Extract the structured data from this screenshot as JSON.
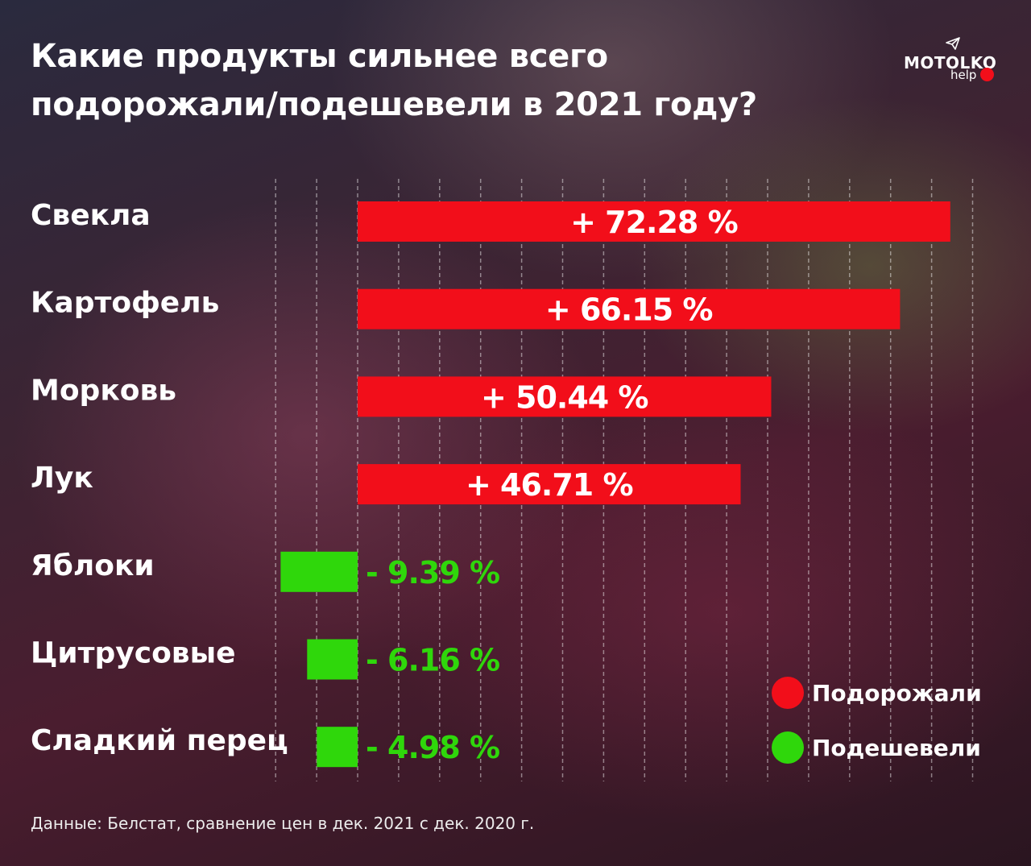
{
  "header": {
    "title_line1": "Какие продукты сильнее всего",
    "title_line2": "подорожали/подешевели в 2021 году?"
  },
  "logo": {
    "name": "MOTOLKO",
    "sub": "help"
  },
  "source": "Данные: Белстат, сравнение цен в дек. 2021 с дек. 2020 г.",
  "legend": {
    "up_label": "Подорожали",
    "down_label": "Подешевели"
  },
  "colors": {
    "up": "#f20e1a",
    "down": "#2fd70b",
    "label_up": "#ffffff",
    "label_down": "#2fd70b"
  },
  "chart_data": {
    "type": "bar",
    "orientation": "horizontal",
    "categories": [
      "Свекла",
      "Картофель",
      "Морковь",
      "Лук",
      "Яблоки",
      "Цитрусовые",
      "Сладкий перец"
    ],
    "values": [
      72.28,
      66.15,
      50.44,
      46.71,
      -9.39,
      -6.16,
      -4.98
    ],
    "value_labels": [
      "+ 72.28 %",
      "+ 66.15 %",
      "+ 50.44 %",
      "+ 46.71 %",
      "- 9.39 %",
      "- 6.16 %",
      "- 4.98 %"
    ],
    "xlim": [
      -10,
      75
    ],
    "grid": true,
    "legend_position": "bottom-right"
  }
}
